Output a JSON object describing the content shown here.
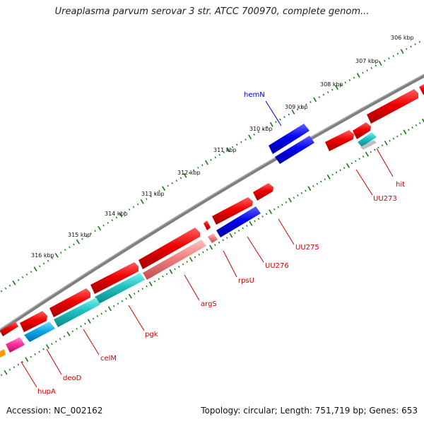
{
  "title": "Ureaplasma parvum serovar 3 str. ATCC 700970, complete genom...",
  "footer": {
    "accession": "Accession: NC_002162",
    "stats": "Topology: circular; Length: 751,719 bp; Genes: 653"
  },
  "ticks": [
    {
      "label": "306 kbp"
    },
    {
      "label": "307 kbp"
    },
    {
      "label": "308 kbp"
    },
    {
      "label": "309 kbp"
    },
    {
      "label": "310 kbp"
    },
    {
      "label": "311 kbp"
    },
    {
      "label": "312 kbp"
    },
    {
      "label": "313 kbp"
    },
    {
      "label": "314 kbp"
    },
    {
      "label": "315 kbp"
    },
    {
      "label": "316 kbp"
    }
  ],
  "genes": [
    {
      "label": "hemN",
      "color": "#0000cc"
    },
    {
      "label": "hit",
      "color": "#cc0000"
    },
    {
      "label": "UU273",
      "color": "#cc0000"
    },
    {
      "label": "UU275",
      "color": "#cc0000"
    },
    {
      "label": "UU276",
      "color": "#cc0000"
    },
    {
      "label": "rpsU",
      "color": "#cc0000"
    },
    {
      "label": "argS",
      "color": "#cc0000"
    },
    {
      "label": "pgk",
      "color": "#cc0000"
    },
    {
      "label": "celM",
      "color": "#cc0000"
    },
    {
      "label": "deoD",
      "color": "#cc0000"
    },
    {
      "label": "hupA",
      "color": "#cc0000"
    }
  ],
  "colors": {
    "forward_cds": "#ee0000",
    "reverse_cds": "#0000ee",
    "rna": "#20c0c0",
    "light_red": "#f08080",
    "pink": "#ff33aa",
    "backbone": "#808080",
    "tick_green": "#117711"
  }
}
